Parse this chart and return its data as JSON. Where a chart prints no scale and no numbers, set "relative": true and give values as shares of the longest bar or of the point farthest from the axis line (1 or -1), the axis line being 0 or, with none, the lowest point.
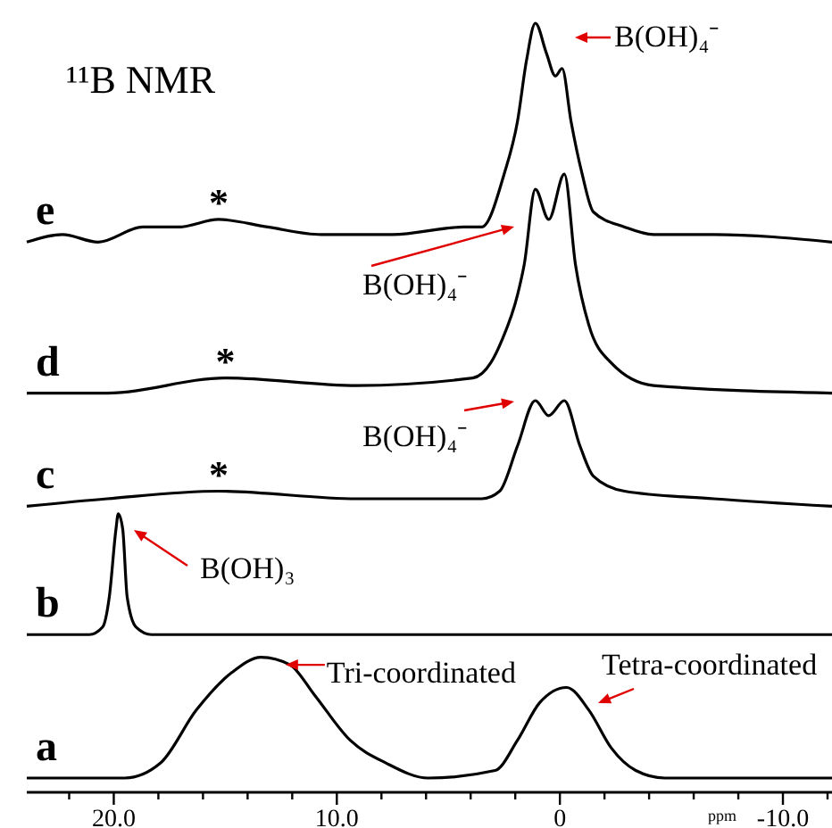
{
  "chart_data": {
    "type": "line",
    "title": "¹¹B NMR",
    "xlabel": "ppm",
    "relative": true,
    "xlim": [
      23.9,
      -12.2
    ],
    "xticks": [
      {
        "value": 22,
        "label": null
      },
      {
        "value": 20,
        "label": "20.0"
      },
      {
        "value": 18,
        "label": null
      },
      {
        "value": 16,
        "label": null
      },
      {
        "value": 14,
        "label": null
      },
      {
        "value": 12,
        "label": null
      },
      {
        "value": 10,
        "label": "10.0"
      },
      {
        "value": 8,
        "label": null
      },
      {
        "value": 6,
        "label": null
      },
      {
        "value": 4,
        "label": null
      },
      {
        "value": 2,
        "label": null
      },
      {
        "value": 0,
        "label": "0"
      },
      {
        "value": -2,
        "label": null
      },
      {
        "value": -4,
        "label": null
      },
      {
        "value": -6,
        "label": null
      },
      {
        "value": -8,
        "label": null
      },
      {
        "value": -10,
        "label": "-10.0"
      },
      {
        "value": -12,
        "label": null
      }
    ],
    "line_style": "solid",
    "marker": "none",
    "legend": false,
    "grid": false,
    "series": [
      {
        "name": "a",
        "color": "#000000",
        "x": [
          23.9,
          20.3,
          19.5,
          17.9,
          16.3,
          14.7,
          13.4,
          12.1,
          11.0,
          9.4,
          7.8,
          5.9,
          2.9,
          1.9,
          0.9,
          -0.3,
          -1.3,
          -2.3,
          -3.4,
          -4.7,
          -12.2
        ],
        "values": [
          0,
          0,
          0.0,
          0.02,
          0.09,
          0.14,
          0.16,
          0.15,
          0.11,
          0.05,
          0.02,
          0.0,
          0.01,
          0.05,
          0.1,
          0.12,
          0.09,
          0.04,
          0.01,
          0.0,
          0
        ]
      },
      {
        "name": "b",
        "color": "#000000",
        "x": [
          23.9,
          21.1,
          20.5,
          20.2,
          19.9,
          19.8,
          19.6,
          19.4,
          19.0,
          18.3,
          -12.2
        ],
        "values": [
          0.19,
          0.19,
          0.2,
          0.24,
          0.33,
          0.35,
          0.33,
          0.24,
          0.2,
          0.19,
          0.19
        ]
      },
      {
        "name": "c",
        "color": "#000000",
        "x": [
          23.9,
          20.3,
          15.3,
          9.1,
          3.5,
          2.7,
          1.9,
          1.1,
          0.5,
          -0.2,
          -0.9,
          -1.5,
          -2.9,
          -6.9,
          -12.2
        ],
        "values": [
          0.36,
          0.37,
          0.38,
          0.37,
          0.37,
          0.38,
          0.44,
          0.5,
          0.48,
          0.5,
          0.44,
          0.4,
          0.38,
          0.37,
          0.36
        ]
      },
      {
        "name": "d",
        "color": "#000000",
        "x": [
          23.9,
          20.3,
          15.0,
          9.1,
          3.9,
          3.1,
          2.6,
          1.9,
          1.6,
          1.1,
          0.5,
          -0.2,
          -0.7,
          -1.3,
          -2.3,
          -4.2,
          -12.2
        ],
        "values": [
          0.51,
          0.51,
          0.53,
          0.52,
          0.53,
          0.55,
          0.58,
          0.64,
          0.68,
          0.78,
          0.74,
          0.8,
          0.68,
          0.6,
          0.55,
          0.52,
          0.51
        ]
      },
      {
        "name": "e",
        "color": "#000000",
        "x": [
          23.9,
          22.3,
          20.7,
          18.7,
          17.1,
          15.3,
          13.1,
          10.7,
          7.5,
          4.3,
          3.5,
          2.5,
          1.9,
          1.5,
          1.1,
          0.6,
          0.2,
          -0.1,
          -0.5,
          -1.0,
          -1.5,
          -2.9,
          -4.2,
          -6.9,
          -12.2
        ],
        "values": [
          0.71,
          0.72,
          0.71,
          0.73,
          0.73,
          0.74,
          0.73,
          0.72,
          0.72,
          0.73,
          0.73,
          0.8,
          0.87,
          0.95,
          1.0,
          0.96,
          0.93,
          0.94,
          0.87,
          0.8,
          0.75,
          0.73,
          0.72,
          0.72,
          0.71
        ]
      }
    ],
    "annotations": [
      "B(OH)₄⁻",
      "B(OH)₄⁻",
      "B(OH)₄⁻",
      "B(OH)₃",
      {
        "text": "Tri-coordinated",
        "x": 12.3,
        "y": 0.15
      },
      "Tetra-coordinated",
      {
        "text": "*",
        "x": 15.3,
        "y": 0.74
      },
      {
        "text": "*",
        "x": 15.0,
        "y": 0.53
      },
      {
        "text": "*",
        "x": 15.3,
        "y": 0.38
      }
    ]
  }
}
